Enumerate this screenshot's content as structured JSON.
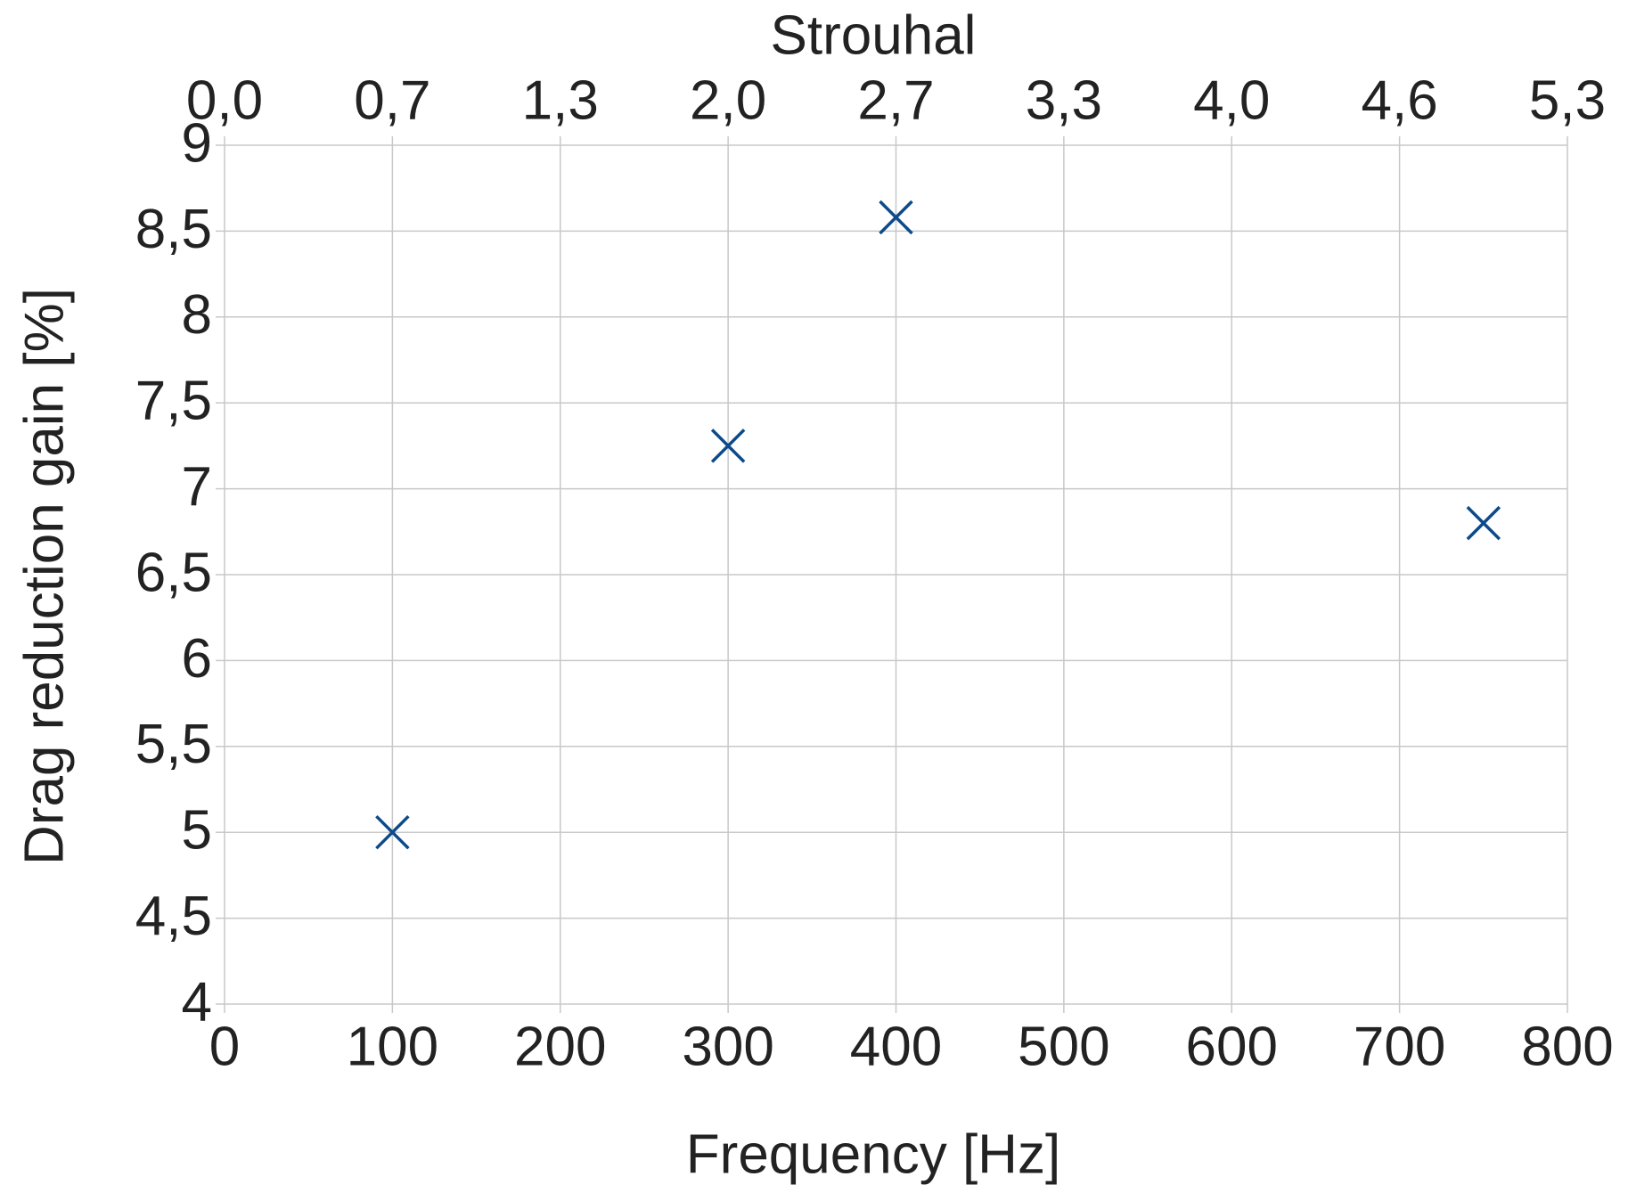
{
  "chart_data": {
    "type": "scatter",
    "xlabel": "Frequency [Hz]",
    "ylabel": "Drag reduction gain [%]",
    "x2label": "Strouhal",
    "x": [
      100,
      300,
      400,
      750
    ],
    "values": [
      5.0,
      7.25,
      8.58,
      6.8
    ],
    "color": "#0d4a8a",
    "marker": "x",
    "xlim": [
      0,
      800
    ],
    "xticks": [
      0,
      100,
      200,
      300,
      400,
      500,
      600,
      700,
      800
    ],
    "ylim": [
      4,
      9
    ],
    "yticks": [
      4,
      {
        "value": 4.5,
        "label": "4,5"
      },
      5,
      {
        "value": 5.5,
        "label": "5,5"
      },
      6,
      {
        "value": 6.5,
        "label": "6,5"
      },
      7,
      {
        "value": 7.5,
        "label": "7,5"
      },
      8,
      {
        "value": 8.5,
        "label": "8,5"
      },
      9
    ],
    "x2lim": [
      0,
      5.3016
    ],
    "x2ticks": [
      {
        "value": 0,
        "label": "0,0"
      },
      {
        "value": 0.6627,
        "label": "0,7"
      },
      {
        "value": 1.3254,
        "label": "1,3"
      },
      {
        "value": 1.9881,
        "label": "2,0"
      },
      {
        "value": 2.6508,
        "label": "2,7"
      },
      {
        "value": 3.3135,
        "label": "3,3"
      },
      {
        "value": 3.9762,
        "label": "4,0"
      },
      {
        "value": 4.6389,
        "label": "4,6"
      },
      {
        "value": 5.3016,
        "label": "5,3"
      }
    ],
    "grid": true
  }
}
